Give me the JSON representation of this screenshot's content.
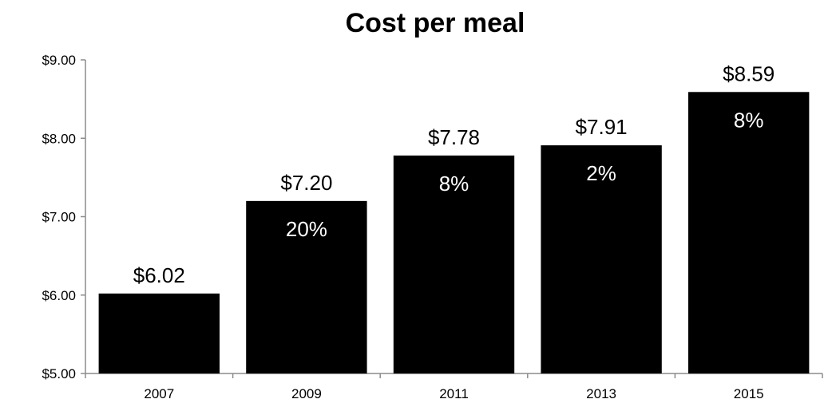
{
  "chart_data": {
    "type": "bar",
    "title": "Cost per meal",
    "categories": [
      "2007",
      "2009",
      "2011",
      "2013",
      "2015"
    ],
    "values": [
      6.02,
      7.2,
      7.78,
      7.91,
      8.59
    ],
    "value_labels": [
      "$6.02",
      "$7.20",
      "$7.78",
      "$7.91",
      "$8.59"
    ],
    "change_labels": [
      "",
      "20%",
      "8%",
      "2%",
      "8%"
    ],
    "ylim": [
      5,
      9
    ],
    "yticks": [
      5,
      6,
      7,
      8,
      9
    ],
    "ytick_labels": [
      "$5.00",
      "$6.00",
      "$7.00",
      "$8.00",
      "$9.00"
    ],
    "xlabel": "",
    "ylabel": "",
    "grid": false,
    "legend": "none",
    "bar_color": "#000000",
    "axis_color": "#8c8c8c"
  }
}
